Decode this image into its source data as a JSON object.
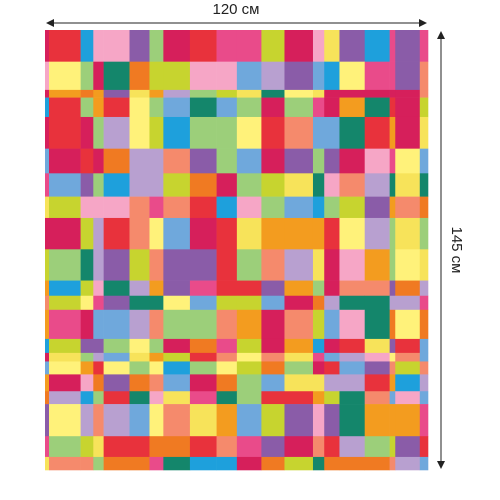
{
  "dimensions": {
    "width": "120 см",
    "height": "145 см"
  }
}
